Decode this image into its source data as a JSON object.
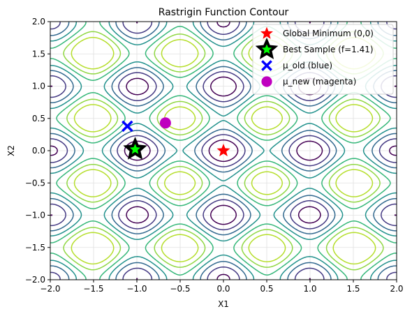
{
  "chart_data": {
    "type": "contour",
    "title": "Rastrigin Function Contour",
    "xlabel": "X1",
    "ylabel": "X2",
    "xlim": [
      -2,
      2
    ],
    "ylim": [
      -2,
      2
    ],
    "xticks": [
      -2.0,
      -1.5,
      -1.0,
      -0.5,
      0.0,
      0.5,
      1.0,
      1.5,
      2.0
    ],
    "yticks": [
      -2.0,
      -1.5,
      -1.0,
      -0.5,
      0.0,
      0.5,
      1.0,
      1.5,
      2.0
    ],
    "xtick_labels": [
      "−2.0",
      "−1.5",
      "−1.0",
      "−0.5",
      "0.0",
      "0.5",
      "1.0",
      "1.5",
      "2.0"
    ],
    "ytick_labels": [
      "−2.0",
      "−1.5",
      "−1.0",
      "−0.5",
      "0.0",
      "0.5",
      "1.0",
      "1.5",
      "2.0"
    ],
    "grid": true,
    "function": "rastrigin",
    "contour_levels": [
      5,
      10,
      15,
      20,
      25,
      30,
      35
    ],
    "contour_colors": [
      "#440154",
      "#443983",
      "#31688e",
      "#21918c",
      "#35b779",
      "#90d743",
      "#b5de2b"
    ],
    "markers": [
      {
        "label": "Global Minimum (0,0)",
        "x": 0.0,
        "y": 0.0,
        "marker": "star",
        "color": "#ff0000"
      },
      {
        "label": "Best Sample (f=1.41)",
        "x": -1.02,
        "y": 0.02,
        "marker": "star",
        "color": "#00ff00",
        "edge": "#000000"
      },
      {
        "label": "μ_old (blue)",
        "x": -1.11,
        "y": 0.38,
        "marker": "x",
        "color": "#0000ff"
      },
      {
        "label": "μ_new (magenta)",
        "x": -0.67,
        "y": 0.43,
        "marker": "circle",
        "color": "#bf00bf"
      }
    ],
    "legend_position": "upper-right"
  }
}
